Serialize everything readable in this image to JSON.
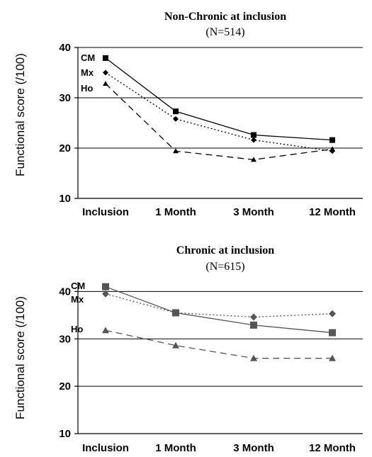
{
  "chart_data": [
    {
      "type": "line",
      "title": "Non-Chronic at inclusion",
      "subtitle": "(N=514)",
      "ylabel": "Functional score (/100)",
      "xlabel": "",
      "categories": [
        "Inclusion",
        "1 Month",
        "3 Month",
        "12 Month"
      ],
      "ylim": [
        10,
        40
      ],
      "yticks": [
        10,
        20,
        30,
        40
      ],
      "gridlines": [
        20,
        30
      ],
      "series": [
        {
          "name": "CM",
          "values": [
            37.9,
            27.3,
            22.6,
            21.6
          ],
          "marker": "square",
          "dash": "solid",
          "color": "#000000"
        },
        {
          "name": "Mx",
          "values": [
            35.0,
            25.8,
            21.6,
            19.4
          ],
          "marker": "diamond",
          "dash": "dotted",
          "color": "#000000"
        },
        {
          "name": "Ho",
          "values": [
            32.8,
            19.4,
            17.7,
            19.8
          ],
          "marker": "triangle",
          "dash": "dashed",
          "color": "#000000"
        }
      ]
    },
    {
      "type": "line",
      "title": "Chronic at inclusion",
      "subtitle": "(N=615)",
      "ylabel": "Functional score (/100)",
      "xlabel": "",
      "categories": [
        "Inclusion",
        "1 Month",
        "3 Month",
        "12 Month"
      ],
      "ylim": [
        10,
        42
      ],
      "yticks": [
        10,
        20,
        30,
        40
      ],
      "gridlines": [
        20,
        30,
        40
      ],
      "series": [
        {
          "name": "CM",
          "values": [
            41.0,
            35.5,
            32.9,
            31.3
          ],
          "marker": "square",
          "dash": "solid",
          "color": "#555555"
        },
        {
          "name": "Mx",
          "values": [
            39.5,
            35.5,
            34.6,
            35.3
          ],
          "marker": "diamond",
          "dash": "dotted",
          "color": "#555555"
        },
        {
          "name": "Ho",
          "values": [
            31.8,
            28.6,
            25.9,
            25.9
          ],
          "marker": "triangle",
          "dash": "dashed",
          "color": "#555555"
        }
      ]
    }
  ]
}
